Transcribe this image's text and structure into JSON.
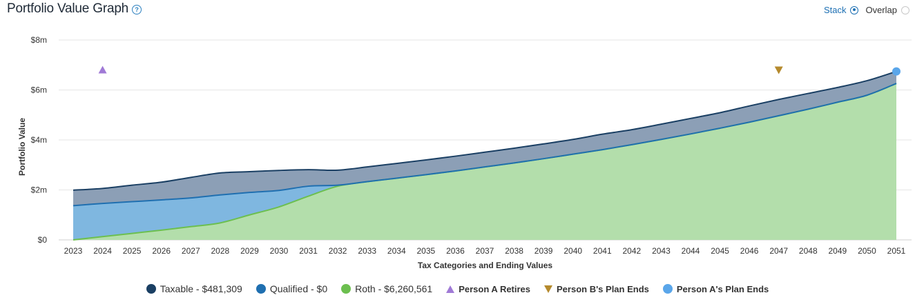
{
  "header": {
    "title": "Portfolio Value Graph",
    "help_icon": "question-circle-icon"
  },
  "view_mode": {
    "options": [
      {
        "label": "Stack",
        "selected": true
      },
      {
        "label": "Overlap",
        "selected": false
      }
    ]
  },
  "chart_data": {
    "type": "area",
    "stacked": true,
    "xlabel": "Tax Categories and Ending Values",
    "ylabel": "Portfolio Value",
    "ylim": [
      0,
      8000000
    ],
    "yticks": [
      {
        "value": 0,
        "label": "$0"
      },
      {
        "value": 2000000,
        "label": "$2m"
      },
      {
        "value": 4000000,
        "label": "$4m"
      },
      {
        "value": 6000000,
        "label": "$6m"
      },
      {
        "value": 8000000,
        "label": "$8m"
      }
    ],
    "grid": true,
    "x": [
      "2023",
      "2024",
      "2025",
      "2026",
      "2027",
      "2028",
      "2029",
      "2030",
      "2031",
      "2032",
      "2033",
      "2034",
      "2035",
      "2036",
      "2037",
      "2038",
      "2039",
      "2040",
      "2041",
      "2042",
      "2043",
      "2044",
      "2045",
      "2046",
      "2047",
      "2048",
      "2049",
      "2050",
      "2051"
    ],
    "series": [
      {
        "name": "Roth - $6,260,561",
        "color": "#6cbf4f",
        "fill": "#b3deab",
        "values": [
          0,
          130000,
          260000,
          390000,
          530000,
          680000,
          1000000,
          1320000,
          1750000,
          2150000,
          2330000,
          2470000,
          2610000,
          2760000,
          2920000,
          3080000,
          3250000,
          3430000,
          3610000,
          3810000,
          4020000,
          4240000,
          4470000,
          4710000,
          4970000,
          5230000,
          5510000,
          5790000,
          6260561
        ]
      },
      {
        "name": "Qualified - $0",
        "color": "#1f6fb0",
        "fill": "#7fb7e0",
        "values": [
          1370000,
          1330000,
          1270000,
          1210000,
          1150000,
          1120000,
          900000,
          660000,
          400000,
          40000,
          0,
          0,
          0,
          0,
          0,
          0,
          0,
          0,
          0,
          0,
          0,
          0,
          0,
          0,
          0,
          0,
          0,
          0,
          0
        ]
      },
      {
        "name": "Taxable - $481,309",
        "color": "#1a3f63",
        "fill": "#8c9fb6",
        "values": [
          620000,
          600000,
          660000,
          710000,
          820000,
          880000,
          830000,
          800000,
          660000,
          600000,
          590000,
          590000,
          590000,
          590000,
          590000,
          590000,
          590000,
          590000,
          620000,
          600000,
          610000,
          620000,
          620000,
          650000,
          650000,
          630000,
          590000,
          580000,
          481309
        ]
      }
    ],
    "markers": [
      {
        "name": "Person A  Retires",
        "shape": "triangle-up",
        "color": "#a07ad6",
        "x": "2024",
        "y": 6800000
      },
      {
        "name": "Person B's  Plan Ends",
        "shape": "triangle-down",
        "color": "#b58a2d",
        "x": "2047",
        "y": 6800000
      },
      {
        "name": "Person A's  Plan Ends",
        "shape": "circle",
        "color": "#5aa6ea",
        "x": "2051",
        "y": 6741870
      }
    ]
  },
  "legend": [
    {
      "label": "Taxable - $481,309",
      "shape": "circle",
      "color": "#1a3f63"
    },
    {
      "label": "Qualified - $0",
      "shape": "circle",
      "color": "#1f6fb0"
    },
    {
      "label": "Roth - $6,260,561",
      "shape": "circle",
      "color": "#6cbf4f"
    },
    {
      "label": "Person A  Retires",
      "shape": "triangle-up",
      "color": "#a07ad6"
    },
    {
      "label": "Person B's  Plan Ends",
      "shape": "triangle-down",
      "color": "#b58a2d"
    },
    {
      "label": "Person A's  Plan Ends",
      "shape": "circle",
      "color": "#5aa6ea"
    }
  ]
}
